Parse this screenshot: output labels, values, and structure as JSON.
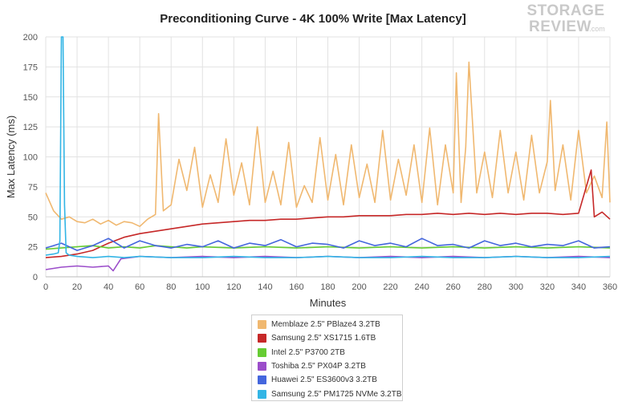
{
  "chart_data": {
    "type": "line",
    "title": "Preconditioning Curve - 4K 100% Write [Max Latency]",
    "xlabel": "Minutes",
    "ylabel": "Max Latency (ms)",
    "xlim": [
      0,
      360
    ],
    "ylim": [
      0,
      200
    ],
    "xticks": [
      0,
      20,
      40,
      60,
      80,
      100,
      120,
      140,
      160,
      180,
      200,
      220,
      240,
      260,
      280,
      300,
      320,
      340,
      360
    ],
    "yticks": [
      0,
      25,
      50,
      75,
      100,
      125,
      150,
      175,
      200
    ],
    "grid": true,
    "legend_position": "bottom-center",
    "logo": {
      "line1": "STORAGE",
      "line2": "REVIEW",
      "suffix": ".com"
    },
    "series": [
      {
        "name": "Memblaze 2.5\" PBlaze4 3.2TB",
        "color": "#f0b870",
        "x": [
          0,
          5,
          10,
          15,
          20,
          25,
          30,
          35,
          40,
          45,
          50,
          55,
          60,
          65,
          70,
          72,
          75,
          80,
          85,
          90,
          95,
          100,
          105,
          110,
          115,
          120,
          125,
          130,
          135,
          140,
          145,
          150,
          155,
          160,
          165,
          170,
          175,
          180,
          185,
          190,
          195,
          200,
          205,
          210,
          215,
          220,
          225,
          230,
          235,
          240,
          245,
          250,
          255,
          260,
          262,
          265,
          268,
          270,
          275,
          280,
          285,
          290,
          295,
          300,
          305,
          310,
          315,
          320,
          322,
          325,
          330,
          335,
          340,
          345,
          350,
          355,
          358,
          360
        ],
        "values": [
          70,
          55,
          48,
          50,
          46,
          45,
          48,
          44,
          47,
          43,
          46,
          45,
          42,
          48,
          52,
          136,
          55,
          60,
          98,
          72,
          108,
          58,
          85,
          62,
          115,
          68,
          95,
          60,
          125,
          62,
          88,
          60,
          112,
          58,
          76,
          62,
          116,
          64,
          102,
          60,
          110,
          66,
          94,
          62,
          122,
          64,
          98,
          68,
          110,
          62,
          124,
          60,
          110,
          70,
          170,
          62,
          108,
          179,
          70,
          104,
          66,
          122,
          70,
          104,
          64,
          118,
          70,
          96,
          147,
          72,
          110,
          64,
          122,
          70,
          84,
          66,
          129,
          62
        ]
      },
      {
        "name": "Samsung 2.5\" XS1715 1.6TB",
        "color": "#c62828",
        "x": [
          0,
          10,
          20,
          30,
          40,
          50,
          60,
          70,
          80,
          90,
          100,
          110,
          120,
          130,
          140,
          150,
          160,
          170,
          180,
          190,
          200,
          210,
          220,
          230,
          240,
          250,
          260,
          270,
          280,
          290,
          300,
          310,
          320,
          330,
          340,
          348,
          350,
          355,
          360
        ],
        "values": [
          16,
          17,
          19,
          22,
          28,
          33,
          36,
          38,
          40,
          42,
          44,
          45,
          46,
          47,
          47,
          48,
          48,
          49,
          50,
          50,
          51,
          51,
          51,
          52,
          52,
          53,
          52,
          53,
          52,
          53,
          52,
          53,
          53,
          52,
          53,
          89,
          50,
          54,
          48
        ]
      },
      {
        "name": "Intel 2.5\" P3700 2TB",
        "color": "#66cc33",
        "x": [
          0,
          10,
          20,
          30,
          40,
          50,
          60,
          70,
          80,
          90,
          100,
          120,
          140,
          160,
          180,
          200,
          220,
          240,
          260,
          280,
          300,
          320,
          340,
          360
        ],
        "values": [
          23,
          24,
          25,
          26,
          24,
          25,
          24,
          26,
          25,
          24,
          25,
          24,
          25,
          24,
          25,
          24,
          25,
          24,
          25,
          24,
          25,
          24,
          25,
          24
        ]
      },
      {
        "name": "Toshiba 2.5\" PX04P 3.2TB",
        "color": "#9b4dca",
        "x": [
          0,
          10,
          20,
          30,
          40,
          43,
          48,
          60,
          80,
          100,
          120,
          140,
          160,
          180,
          200,
          220,
          240,
          260,
          280,
          300,
          320,
          340,
          360
        ],
        "values": [
          6,
          8,
          9,
          8,
          9,
          5,
          15,
          17,
          16,
          17,
          16,
          17,
          16,
          17,
          16,
          17,
          16,
          17,
          16,
          17,
          16,
          17,
          16
        ]
      },
      {
        "name": "Huawei 2.5\" ES3600v3 3.2TB",
        "color": "#4466dd",
        "x": [
          0,
          10,
          20,
          30,
          40,
          50,
          60,
          70,
          80,
          90,
          100,
          110,
          120,
          130,
          140,
          150,
          160,
          170,
          180,
          190,
          200,
          210,
          220,
          230,
          240,
          250,
          260,
          270,
          280,
          290,
          300,
          310,
          320,
          330,
          340,
          350,
          360
        ],
        "values": [
          24,
          28,
          22,
          26,
          32,
          24,
          30,
          26,
          24,
          27,
          25,
          30,
          24,
          28,
          26,
          31,
          25,
          28,
          27,
          24,
          30,
          26,
          28,
          25,
          32,
          26,
          27,
          24,
          30,
          26,
          28,
          25,
          27,
          26,
          30,
          24,
          25
        ]
      },
      {
        "name": "Samsung 2.5\" PM1725 NVMe 3.2TB",
        "color": "#33b5e5",
        "x": [
          0,
          5,
          8,
          9,
          10,
          11,
          12,
          13,
          15,
          20,
          30,
          40,
          50,
          60,
          80,
          100,
          120,
          140,
          160,
          180,
          200,
          220,
          240,
          260,
          280,
          300,
          320,
          340,
          360
        ],
        "values": [
          18,
          19,
          20,
          30,
          200,
          200,
          60,
          20,
          18,
          17,
          16,
          17,
          16,
          17,
          16,
          16,
          17,
          16,
          16,
          17,
          16,
          16,
          17,
          16,
          16,
          17,
          16,
          16,
          17
        ]
      }
    ]
  }
}
